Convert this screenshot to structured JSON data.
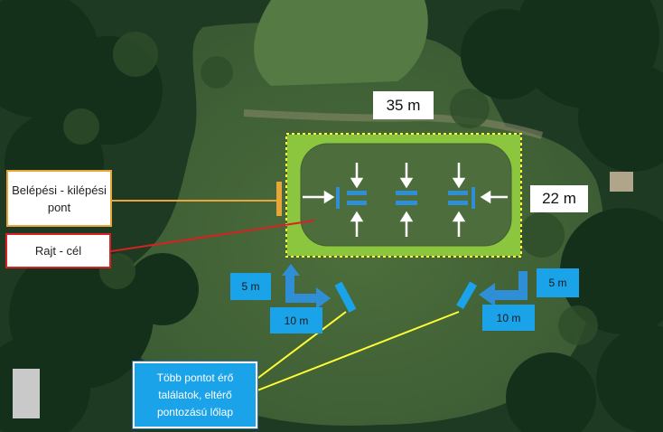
{
  "labels": {
    "width": "35 m",
    "height": "22 m",
    "entry_exit": "Belépési - kilépési pont",
    "start_finish": "Rajt - cél",
    "left_5m": "5 m",
    "left_10m": "10 m",
    "right_5m": "5 m",
    "right_10m": "10 m",
    "multi_target": "Több pontot érő találatok, eltérő pontozású lőlap"
  },
  "colors": {
    "field": "#8cc63e",
    "inner": "#4d6e3c",
    "entry": "#e8a63a",
    "start": "#d62222",
    "blue": "#1aa3e8",
    "callout": "#ffff33"
  },
  "icons": [
    "arrow-icon",
    "target-icon"
  ]
}
